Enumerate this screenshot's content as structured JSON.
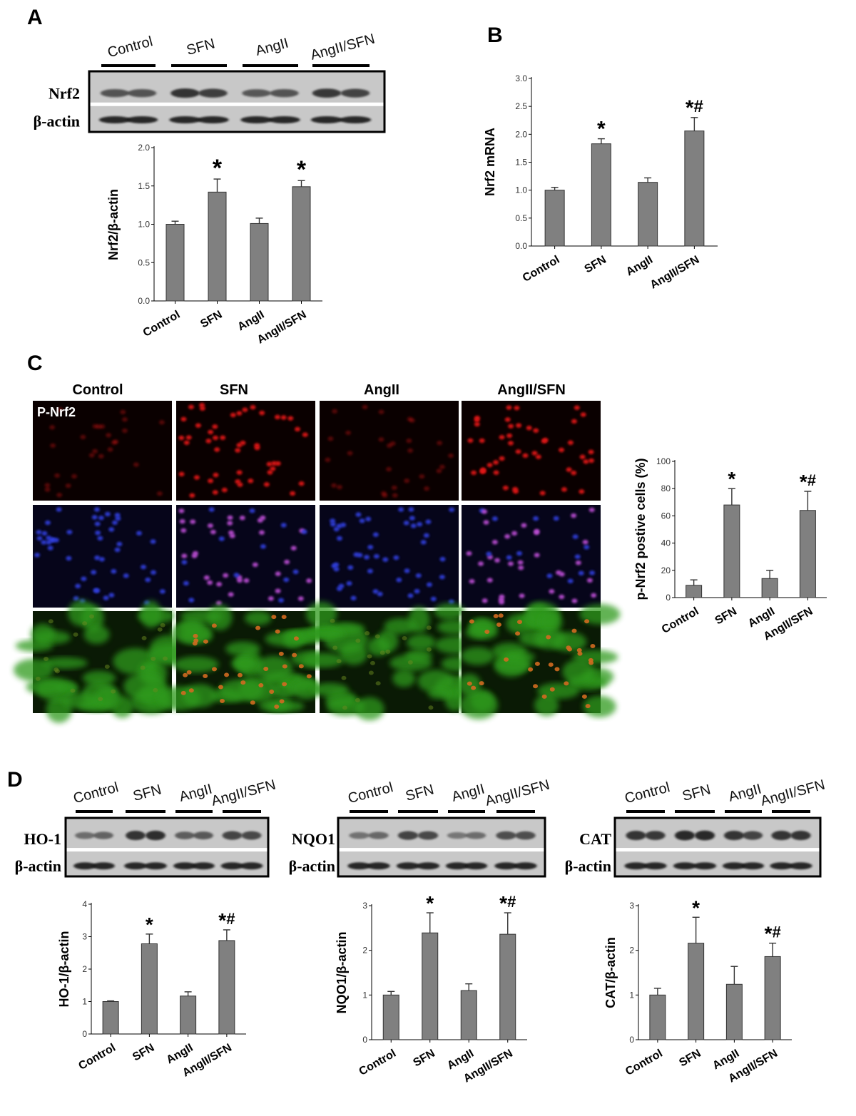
{
  "panel_labels": [
    "A",
    "B",
    "C",
    "D"
  ],
  "colors": {
    "bar_fill": "#808080",
    "blot_background": "#c8c8c8",
    "red_stain": "#e01818",
    "blue_stain": "#3040e0",
    "green_stain": "#2e9a1e"
  },
  "blots": [
    {
      "panel": "A",
      "lanes": [
        "Control",
        "SFN",
        "AngII",
        "AngII/SFN"
      ],
      "rows": [
        "Nrf2",
        "β-actin"
      ],
      "band_intensity": [
        [
          0.55,
          0.55
        ],
        [
          0.85,
          0.75
        ],
        [
          0.5,
          0.55
        ],
        [
          0.8,
          0.7
        ]
      ]
    },
    {
      "panel": "D-HO-1",
      "lanes": [
        "Control",
        "SFN",
        "AngII",
        "AngII/SFN"
      ],
      "rows": [
        "HO-1",
        "β-actin"
      ],
      "band_intensity": [
        [
          0.3,
          0.4
        ],
        [
          0.85,
          0.9
        ],
        [
          0.45,
          0.5
        ],
        [
          0.7,
          0.65
        ]
      ]
    },
    {
      "panel": "D-NQO1",
      "lanes": [
        "Control",
        "SFN",
        "AngII",
        "AngII/SFN"
      ],
      "rows": [
        "NQO1",
        "β-actin"
      ],
      "band_intensity": [
        [
          0.25,
          0.35
        ],
        [
          0.7,
          0.65
        ],
        [
          0.2,
          0.3
        ],
        [
          0.6,
          0.6
        ]
      ]
    },
    {
      "panel": "D-CAT",
      "lanes": [
        "Control",
        "SFN",
        "AngII",
        "AngII/SFN"
      ],
      "rows": [
        "CAT",
        "β-actin"
      ],
      "band_intensity": [
        [
          0.85,
          0.8
        ],
        [
          0.95,
          0.95
        ],
        [
          0.85,
          0.7
        ],
        [
          0.85,
          0.85
        ]
      ]
    }
  ],
  "images": {
    "columns": [
      "Control",
      "SFN",
      "AngII",
      "AngII/SFN"
    ],
    "row1_label": "P-Nrf2",
    "stains": [
      "red",
      "blue",
      "green"
    ],
    "cell_density": [
      0.35,
      0.9,
      0.4,
      0.85
    ]
  },
  "chart_data": [
    {
      "panel": "A",
      "type": "bar",
      "categories": [
        "Control",
        "SFN",
        "AngII",
        "AngII/SFN"
      ],
      "values": [
        1.0,
        1.42,
        1.01,
        1.49
      ],
      "errors": [
        0.04,
        0.17,
        0.07,
        0.08
      ],
      "significance": [
        "",
        "*",
        "",
        "*"
      ],
      "ylabel": "Nrf2/β-actin",
      "ylim": [
        0,
        2.0
      ],
      "yticks": [
        "0.0",
        "0.5",
        "1.0",
        "1.5",
        "2.0"
      ],
      "grid": false
    },
    {
      "panel": "B",
      "type": "bar",
      "categories": [
        "Control",
        "SFN",
        "AngII",
        "AngII/SFN"
      ],
      "values": [
        1.0,
        1.83,
        1.14,
        2.06
      ],
      "errors": [
        0.05,
        0.09,
        0.08,
        0.24
      ],
      "significance": [
        "",
        "*",
        "",
        "*#"
      ],
      "ylabel": "Nrf2 mRNA",
      "ylim": [
        0,
        3.0
      ],
      "yticks": [
        "0.0",
        "0.5",
        "1.0",
        "1.5",
        "2.0",
        "2.5",
        "3.0"
      ],
      "grid": false
    },
    {
      "panel": "C",
      "type": "bar",
      "categories": [
        "Control",
        "SFN",
        "AngII",
        "AngII/SFN"
      ],
      "values": [
        9,
        68,
        14,
        64
      ],
      "errors": [
        4,
        12,
        6,
        14
      ],
      "significance": [
        "",
        "*",
        "",
        "*#"
      ],
      "ylabel": "p-Nrf2 postive cells (%)",
      "ylim": [
        0,
        100
      ],
      "yticks": [
        "0",
        "20",
        "40",
        "60",
        "80",
        "100"
      ],
      "grid": false
    },
    {
      "panel": "D",
      "type": "bar",
      "categories": [
        "Control",
        "SFN",
        "AngII",
        "AngII/SFN"
      ],
      "values": [
        1.0,
        2.78,
        1.17,
        2.88
      ],
      "errors": [
        0.02,
        0.3,
        0.13,
        0.33
      ],
      "significance": [
        "",
        "*",
        "",
        "*#"
      ],
      "ylabel": "HO-1/β-actin",
      "ylim": [
        0,
        4
      ],
      "yticks": [
        "0",
        "1",
        "2",
        "3",
        "4"
      ],
      "grid": false
    },
    {
      "panel": "D",
      "type": "bar",
      "categories": [
        "Control",
        "SFN",
        "AngII",
        "AngII/SFN"
      ],
      "values": [
        1.0,
        2.39,
        1.1,
        2.36
      ],
      "errors": [
        0.08,
        0.45,
        0.15,
        0.48
      ],
      "significance": [
        "",
        "*",
        "",
        "*#"
      ],
      "ylabel": "NQO1/β-actin",
      "ylim": [
        0,
        3
      ],
      "yticks": [
        "0",
        "1",
        "2",
        "3"
      ],
      "grid": false
    },
    {
      "panel": "D",
      "type": "bar",
      "categories": [
        "Control",
        "SFN",
        "AngII",
        "AngII/SFN"
      ],
      "values": [
        1.0,
        2.16,
        1.24,
        1.86
      ],
      "errors": [
        0.15,
        0.58,
        0.4,
        0.3
      ],
      "significance": [
        "",
        "*",
        "",
        "*#"
      ],
      "ylabel": "CAT/β-actin",
      "ylim": [
        0,
        3
      ],
      "yticks": [
        "0",
        "1",
        "2",
        "3"
      ],
      "grid": false
    }
  ]
}
